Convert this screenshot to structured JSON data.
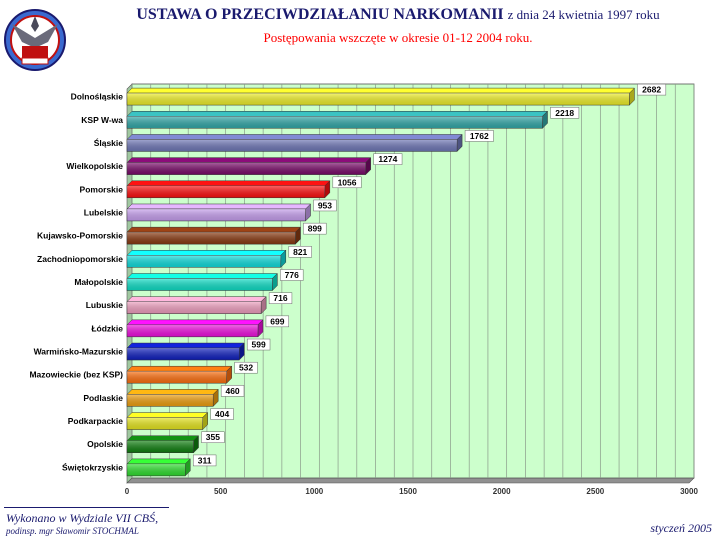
{
  "header": {
    "title_main": "USTAWA O PRZECIWDZIAŁANIU NARKOMANII",
    "title_date": "z dnia 24 kwietnia 1997 roku",
    "subtitle": "Postępowania wszczęte w okresie 01-12 2004 roku."
  },
  "footer": {
    "made_by": "Wykonano w Wydziale VII CBŚ,",
    "prepared_by": "podinsp. mgr Sławomir STOCHMAL",
    "date": "styczeń 2005"
  },
  "colors": {
    "plot_background": "#ccffcc",
    "grid": "#8a9a8a"
  },
  "chart_data": {
    "type": "bar",
    "orientation": "horizontal",
    "categories": [
      "Dolnośląskie",
      "KSP W-wa",
      "Śląskie",
      "Wielkopolskie",
      "Pomorskie",
      "Lubelskie",
      "Kujawsko-Pomorskie",
      "Zachodniopomorskie",
      "Małopolskie",
      "Lubuskie",
      "Łódzkie",
      "Warmińsko-Mazurskie",
      "Mazowieckie (bez KSP)",
      "Podlaskie",
      "Podkarpackie",
      "Opolskie",
      "Świętokrzyskie"
    ],
    "values": [
      2682,
      2218,
      1762,
      1274,
      1056,
      953,
      899,
      821,
      776,
      716,
      699,
      599,
      532,
      460,
      404,
      355,
      311
    ],
    "colors": [
      "#f0f02a",
      "#33aaaa",
      "#7078b8",
      "#7a0a6a",
      "#ff1010",
      "#c8a0f0",
      "#8a3a12",
      "#10dede",
      "#10e0c8",
      "#f0a0c0",
      "#f010e0",
      "#1020c0",
      "#ff7010",
      "#f0a010",
      "#e8e820",
      "#108010",
      "#30e030"
    ],
    "xlim": [
      0,
      3000
    ],
    "xticks": [
      "0",
      "500",
      "1000",
      "1500",
      "2000",
      "2500",
      "3000"
    ],
    "grid": true,
    "data_labels": true
  }
}
